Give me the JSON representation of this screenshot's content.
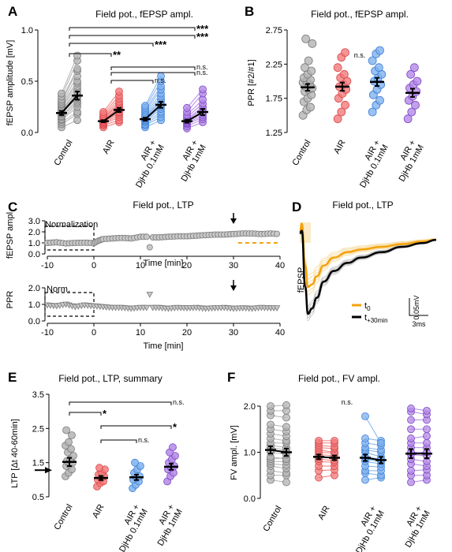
{
  "colors": {
    "control": "#b4b4b4",
    "control_dark": "#7a7a7a",
    "air": "#f27b7b",
    "air_dark": "#d9484c",
    "djhb01": "#7fb2ee",
    "djhb01_dark": "#3f7fd6",
    "djhb1": "#b488e6",
    "djhb1_dark": "#7d48c7",
    "orange": "#f2a20d",
    "light_orange": "#f8d690"
  },
  "panels": {
    "A": {
      "label": "A",
      "title": "Field pot., fEPSP ampl.",
      "ylabel": "fEPSP amplitude [mV]"
    },
    "B": {
      "label": "B",
      "title": "Field pot., fEPSP ampl.",
      "ylabel": "PPR [#2/#1]"
    },
    "C": {
      "label": "C",
      "title": "Field pot., LTP",
      "ylabel_top": "fEPSP ampl.",
      "ylabel_bottom": "PPR",
      "xlabel": "Time [min]",
      "box_top": "Normalization",
      "box_bottom": "Norm."
    },
    "D": {
      "label": "D",
      "title": "Field pot., LTP",
      "ylabel": "fEPSP",
      "legend_t0": "t",
      "legend_t0_sub": "0",
      "legend_t30": "t",
      "legend_t30_sub": "+30min",
      "scale_y": "0.05mV",
      "scale_x": "3ms"
    },
    "E": {
      "label": "E",
      "title": "Field pot., LTP, summary",
      "ylabel": "LTP [Δt 40-60min]"
    },
    "F": {
      "label": "F",
      "title": "Field pot., FV ampl."
    }
  },
  "groups": {
    "control": "Control",
    "air": "AIR",
    "djhb01": [
      "AIR +",
      "DjHb 0.1mM"
    ],
    "djhb1": [
      "AIR +",
      "DjHb 1mM"
    ]
  },
  "chart_data": [
    {
      "panel": "A",
      "type": "paired-scatter",
      "ylim": [
        0,
        1.0
      ],
      "yticks": [
        "0.0",
        "0.5",
        "1.0"
      ],
      "groups": [
        "Control",
        "AIR",
        "AIR + DjHb 0.1mM",
        "AIR + DjHb 1mM"
      ],
      "means": [
        [
          0.19,
          0.36
        ],
        [
          0.11,
          0.22
        ],
        [
          0.13,
          0.27
        ],
        [
          0.11,
          0.2
        ]
      ],
      "sem": [
        [
          0.02,
          0.04
        ],
        [
          0.01,
          0.02
        ],
        [
          0.015,
          0.03
        ],
        [
          0.015,
          0.03
        ]
      ],
      "pairs": [
        [
          [
            0.05,
            0.12
          ],
          [
            0.08,
            0.18
          ],
          [
            0.1,
            0.2
          ],
          [
            0.12,
            0.25
          ],
          [
            0.13,
            0.28
          ],
          [
            0.15,
            0.3
          ],
          [
            0.16,
            0.32
          ],
          [
            0.18,
            0.34
          ],
          [
            0.19,
            0.36
          ],
          [
            0.2,
            0.38
          ],
          [
            0.21,
            0.4
          ],
          [
            0.22,
            0.42
          ],
          [
            0.24,
            0.45
          ],
          [
            0.25,
            0.48
          ],
          [
            0.27,
            0.5
          ],
          [
            0.28,
            0.55
          ],
          [
            0.3,
            0.6
          ],
          [
            0.32,
            0.62
          ],
          [
            0.35,
            0.7
          ],
          [
            0.38,
            0.75
          ]
        ],
        [
          [
            0.05,
            0.1
          ],
          [
            0.07,
            0.12
          ],
          [
            0.08,
            0.15
          ],
          [
            0.09,
            0.17
          ],
          [
            0.1,
            0.19
          ],
          [
            0.1,
            0.2
          ],
          [
            0.11,
            0.22
          ],
          [
            0.12,
            0.24
          ],
          [
            0.12,
            0.25
          ],
          [
            0.13,
            0.27
          ],
          [
            0.14,
            0.28
          ],
          [
            0.15,
            0.3
          ],
          [
            0.16,
            0.33
          ],
          [
            0.18,
            0.36
          ],
          [
            0.2,
            0.4
          ]
        ],
        [
          [
            0.05,
            0.12
          ],
          [
            0.07,
            0.15
          ],
          [
            0.08,
            0.18
          ],
          [
            0.1,
            0.2
          ],
          [
            0.11,
            0.23
          ],
          [
            0.12,
            0.25
          ],
          [
            0.13,
            0.27
          ],
          [
            0.14,
            0.3
          ],
          [
            0.15,
            0.32
          ],
          [
            0.16,
            0.35
          ],
          [
            0.18,
            0.38
          ],
          [
            0.2,
            0.42
          ],
          [
            0.22,
            0.45
          ],
          [
            0.24,
            0.5
          ],
          [
            0.26,
            0.55
          ]
        ],
        [
          [
            0.04,
            0.1
          ],
          [
            0.06,
            0.13
          ],
          [
            0.08,
            0.15
          ],
          [
            0.09,
            0.17
          ],
          [
            0.1,
            0.19
          ],
          [
            0.11,
            0.2
          ],
          [
            0.12,
            0.23
          ],
          [
            0.13,
            0.25
          ],
          [
            0.15,
            0.28
          ],
          [
            0.17,
            0.32
          ],
          [
            0.2,
            0.38
          ],
          [
            0.24,
            0.42
          ]
        ]
      ],
      "significance": [
        {
          "from": 0,
          "to": 1,
          "label": "**"
        },
        {
          "from": 0,
          "to": 2,
          "label": "***"
        },
        {
          "from": 0,
          "to": 3,
          "label": "***"
        },
        {
          "from": 0,
          "to": 3,
          "label": "***"
        },
        {
          "from": 1,
          "to": 3,
          "label": "n.s."
        },
        {
          "from": 1,
          "to": 2,
          "label": "n.s."
        },
        {
          "from": 1,
          "to": 3,
          "label": "n.s."
        },
        {
          "from": 2,
          "to": 3,
          "label": "n.s."
        }
      ]
    },
    {
      "panel": "B",
      "type": "scatter",
      "ylim": [
        1.25,
        2.75
      ],
      "yticks": [
        "1.25",
        "1.75",
        "2.25",
        "2.75"
      ],
      "groups": [
        "Control",
        "AIR",
        "AIR + DjHb 0.1mM",
        "AIR + DjHb 1mM"
      ],
      "means": [
        1.91,
        1.92,
        1.99,
        1.83
      ],
      "sem": [
        0.05,
        0.06,
        0.06,
        0.06
      ],
      "values": [
        [
          1.5,
          1.58,
          1.62,
          1.7,
          1.75,
          1.8,
          1.85,
          1.88,
          1.9,
          1.92,
          1.95,
          1.98,
          2.0,
          2.02,
          2.05,
          2.1,
          2.15,
          2.2,
          2.3,
          2.55,
          2.62
        ],
        [
          1.45,
          1.55,
          1.65,
          1.75,
          1.82,
          1.88,
          1.92,
          1.95,
          2.0,
          2.05,
          2.1,
          2.2,
          2.35,
          2.42
        ],
        [
          1.55,
          1.65,
          1.72,
          1.8,
          1.88,
          1.95,
          2.0,
          2.05,
          2.1,
          2.15,
          2.2,
          2.3,
          2.4,
          2.45
        ],
        [
          1.45,
          1.55,
          1.65,
          1.72,
          1.78,
          1.85,
          1.9,
          1.95,
          2.0,
          2.1,
          2.2
        ]
      ],
      "significance": [
        {
          "label": "n.s."
        }
      ]
    },
    {
      "panel": "C-top",
      "type": "scatter",
      "xlabel": "Time [min]",
      "xlim": [
        -10,
        40
      ],
      "xticks": [
        "-10",
        "0",
        "10",
        "20",
        "30",
        "40"
      ],
      "ylim": [
        0,
        3.0
      ],
      "yticks": [
        "0.0",
        "1.0",
        "2.0",
        "3.0"
      ],
      "points": [
        [
          -10,
          1.0
        ],
        [
          -8,
          1.05
        ],
        [
          -6,
          0.95
        ],
        [
          -4,
          1.0
        ],
        [
          -2,
          1.02
        ],
        [
          0,
          0.98
        ],
        [
          1,
          1.2
        ],
        [
          2,
          1.35
        ],
        [
          4,
          1.4
        ],
        [
          6,
          1.45
        ],
        [
          8,
          1.4
        ],
        [
          10,
          1.55
        ],
        [
          12,
          0.6
        ],
        [
          14,
          1.5
        ],
        [
          16,
          1.55
        ],
        [
          18,
          1.6
        ],
        [
          20,
          1.6
        ],
        [
          22,
          1.65
        ],
        [
          24,
          1.7
        ],
        [
          26,
          1.75
        ],
        [
          28,
          1.75
        ],
        [
          30,
          1.8
        ],
        [
          32,
          1.85
        ],
        [
          34,
          1.85
        ],
        [
          36,
          1.8
        ],
        [
          38,
          1.85
        ],
        [
          40,
          1.8
        ]
      ],
      "arrow_x": 30,
      "reference_line": {
        "y": 1.0,
        "from": 31,
        "to": 40
      }
    },
    {
      "panel": "C-bottom",
      "type": "scatter",
      "xlabel": "Time [min]",
      "xlim": [
        -10,
        40
      ],
      "xticks": [
        "-10",
        "0",
        "10",
        "20",
        "30",
        "40"
      ],
      "ylim": [
        0,
        2.0
      ],
      "yticks": [
        "0.0",
        "1.0",
        "2.0"
      ],
      "points": [
        [
          -10,
          0.95
        ],
        [
          -8,
          0.9
        ],
        [
          -6,
          1.0
        ],
        [
          -4,
          0.85
        ],
        [
          -2,
          0.95
        ],
        [
          0,
          0.9
        ],
        [
          2,
          0.85
        ],
        [
          4,
          0.8
        ],
        [
          6,
          0.8
        ],
        [
          8,
          0.75
        ],
        [
          10,
          0.8
        ],
        [
          12,
          1.6
        ],
        [
          14,
          0.8
        ],
        [
          16,
          0.75
        ],
        [
          18,
          0.8
        ],
        [
          20,
          0.78
        ],
        [
          22,
          0.8
        ],
        [
          24,
          0.75
        ],
        [
          26,
          0.78
        ],
        [
          28,
          0.8
        ],
        [
          30,
          0.75
        ],
        [
          32,
          0.78
        ],
        [
          34,
          0.75
        ],
        [
          36,
          0.8
        ],
        [
          38,
          0.78
        ],
        [
          40,
          0.78
        ]
      ],
      "arrow_x": 30
    },
    {
      "panel": "D",
      "type": "line",
      "series": [
        {
          "name": "t0",
          "x": [
            0,
            0.3,
            0.8,
            1.2,
            1.8,
            2.5,
            3.5,
            5,
            7,
            9,
            12,
            15,
            18,
            20
          ],
          "y": [
            0,
            0.018,
            -0.06,
            -0.1,
            -0.095,
            -0.08,
            -0.06,
            -0.045,
            -0.035,
            -0.03,
            -0.025,
            -0.02,
            -0.015,
            -0.012
          ]
        },
        {
          "name": "t+30min",
          "x": [
            0,
            0.3,
            0.8,
            1.2,
            1.8,
            2.5,
            3.5,
            5,
            7,
            9,
            12,
            15,
            18,
            20
          ],
          "y": [
            0,
            0.005,
            -0.1,
            -0.15,
            -0.14,
            -0.12,
            -0.09,
            -0.07,
            -0.055,
            -0.045,
            -0.035,
            -0.025,
            -0.018,
            -0.012
          ]
        }
      ]
    },
    {
      "panel": "E",
      "type": "scatter",
      "ylim": [
        0.5,
        3.5
      ],
      "yticks": [
        "0.5",
        "1.5",
        "2.5",
        "3.5"
      ],
      "groups": [
        "Control",
        "AIR",
        "AIR + DjHb 0.1mM",
        "AIR + DjHb 1mM"
      ],
      "means": [
        1.52,
        1.05,
        1.07,
        1.38
      ],
      "sem": [
        0.12,
        0.06,
        0.08,
        0.09
      ],
      "values": [
        [
          1.1,
          1.2,
          1.3,
          1.4,
          1.45,
          1.5,
          1.55,
          1.6,
          1.7,
          1.8,
          1.9,
          2.0,
          2.1,
          2.3,
          2.45
        ],
        [
          0.8,
          0.9,
          0.95,
          1.0,
          1.05,
          1.1,
          1.15,
          1.2,
          1.3,
          1.35
        ],
        [
          0.75,
          0.85,
          0.95,
          1.0,
          1.05,
          1.1,
          1.2,
          1.3,
          1.4,
          1.5
        ],
        [
          0.95,
          1.1,
          1.2,
          1.3,
          1.35,
          1.4,
          1.5,
          1.6,
          1.7,
          1.8,
          1.95
        ]
      ],
      "arrow_y": 1.28,
      "significance": [
        {
          "from": 0,
          "to": 3,
          "label": "n.s."
        },
        {
          "from": 0,
          "to": 1,
          "label": "*"
        },
        {
          "from": 1,
          "to": 3,
          "label": "*"
        },
        {
          "from": 1,
          "to": 2,
          "label": "n.s."
        }
      ]
    },
    {
      "panel": "F",
      "type": "paired-scatter",
      "ylabel": "FV ampl. [mV]",
      "ylim": [
        0,
        2.0
      ],
      "yticks": [
        "0.0",
        "1.0",
        "2.0"
      ],
      "groups": [
        "Control",
        "AIR",
        "AIR + DjHb 0.1mM",
        "AIR + DjHb 1mM"
      ],
      "means": [
        [
          1.05,
          1.0
        ],
        [
          0.9,
          0.88
        ],
        [
          0.88,
          0.83
        ],
        [
          0.97,
          0.97
        ]
      ],
      "sem": [
        [
          0.08,
          0.08
        ],
        [
          0.05,
          0.05
        ],
        [
          0.07,
          0.07
        ],
        [
          0.1,
          0.1
        ]
      ],
      "pairs": [
        [
          [
            0.4,
            0.35
          ],
          [
            0.5,
            0.5
          ],
          [
            0.6,
            0.55
          ],
          [
            0.7,
            0.65
          ],
          [
            0.75,
            0.72
          ],
          [
            0.8,
            0.8
          ],
          [
            0.85,
            0.88
          ],
          [
            0.9,
            0.85
          ],
          [
            1.0,
            0.95
          ],
          [
            1.05,
            1.02
          ],
          [
            1.1,
            1.05
          ],
          [
            1.15,
            1.1
          ],
          [
            1.2,
            1.2
          ],
          [
            1.3,
            1.25
          ],
          [
            1.4,
            1.35
          ],
          [
            1.5,
            1.45
          ],
          [
            1.6,
            1.55
          ],
          [
            1.8,
            1.75
          ],
          [
            1.9,
            1.9
          ],
          [
            2.0,
            2.02
          ]
        ],
        [
          [
            0.45,
            0.5
          ],
          [
            0.6,
            0.62
          ],
          [
            0.7,
            0.7
          ],
          [
            0.8,
            0.78
          ],
          [
            0.85,
            0.82
          ],
          [
            0.9,
            0.88
          ],
          [
            0.95,
            0.92
          ],
          [
            1.0,
            0.98
          ],
          [
            1.05,
            1.0
          ],
          [
            1.1,
            1.08
          ],
          [
            1.15,
            1.12
          ],
          [
            1.2,
            1.2
          ],
          [
            1.25,
            1.25
          ]
        ],
        [
          [
            0.4,
            0.45
          ],
          [
            0.55,
            0.5
          ],
          [
            0.6,
            0.6
          ],
          [
            0.7,
            0.68
          ],
          [
            0.8,
            0.75
          ],
          [
            0.85,
            0.8
          ],
          [
            0.9,
            0.85
          ],
          [
            1.0,
            0.9
          ],
          [
            1.05,
            1.0
          ],
          [
            1.1,
            1.05
          ],
          [
            1.2,
            1.15
          ],
          [
            1.3,
            1.25
          ],
          [
            1.78,
            1.2
          ]
        ],
        [
          [
            0.35,
            0.4
          ],
          [
            0.5,
            0.5
          ],
          [
            0.6,
            0.62
          ],
          [
            0.75,
            0.7
          ],
          [
            0.85,
            0.8
          ],
          [
            0.95,
            0.92
          ],
          [
            1.0,
            1.0
          ],
          [
            1.1,
            1.1
          ],
          [
            1.2,
            1.2
          ],
          [
            1.3,
            1.35
          ],
          [
            1.5,
            1.5
          ],
          [
            1.7,
            1.7
          ],
          [
            1.88,
            1.82
          ],
          [
            1.95,
            1.9
          ]
        ]
      ],
      "significance": [
        {
          "label": "n.s."
        }
      ]
    }
  ]
}
